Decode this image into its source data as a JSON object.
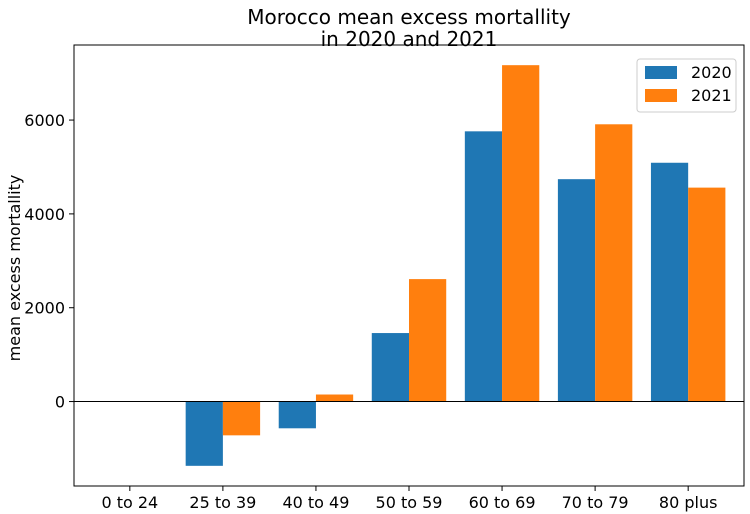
{
  "chart_data": {
    "type": "bar",
    "title_lines": [
      "Morocco mean excess mortallity",
      "in 2020 and 2021"
    ],
    "xlabel": "",
    "ylabel": "mean excess mortallity",
    "categories": [
      "0 to 24",
      "25 to 39",
      "40 to 49",
      "50 to 59",
      "60 to 69",
      "70 to 79",
      "80 plus"
    ],
    "series": [
      {
        "name": "2020",
        "color": "#1f77b4",
        "values": [
          0,
          -1370,
          -570,
          1460,
          5760,
          4740,
          5090
        ]
      },
      {
        "name": "2021",
        "color": "#ff7f0e",
        "values": [
          0,
          -720,
          150,
          2610,
          7170,
          5910,
          4560
        ]
      }
    ],
    "yticks": [
      0,
      2000,
      4000,
      6000
    ],
    "ylim": [
      -1800,
      7600
    ],
    "zero_line": true,
    "grid": false,
    "legend_position": "top-right"
  }
}
